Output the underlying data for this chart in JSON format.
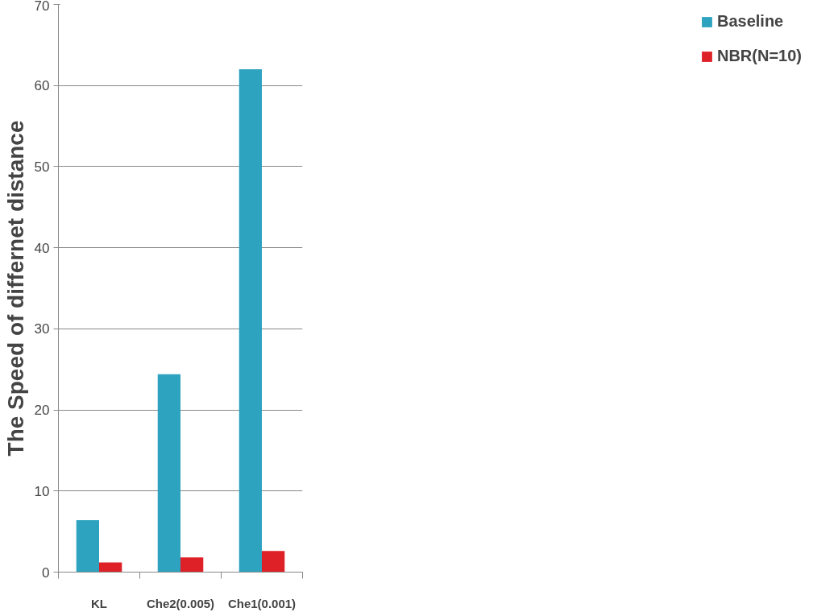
{
  "chart_data": {
    "type": "bar",
    "ylabel": "The Speed of differnet distance",
    "categories": [
      "KL",
      "Che2(0.005)",
      "Che1(0.001)"
    ],
    "series": [
      {
        "name": "Baseline",
        "color": "#2ea3bf",
        "values": [
          6.4,
          24.4,
          62.0
        ]
      },
      {
        "name": "NBR(N=10)",
        "color": "#de2027",
        "values": [
          1.2,
          1.8,
          2.6
        ]
      }
    ],
    "ylim": [
      0,
      70
    ],
    "yticks": [
      0,
      10,
      20,
      30,
      40,
      50,
      60,
      70
    ],
    "grid": "y",
    "legend": "right"
  }
}
